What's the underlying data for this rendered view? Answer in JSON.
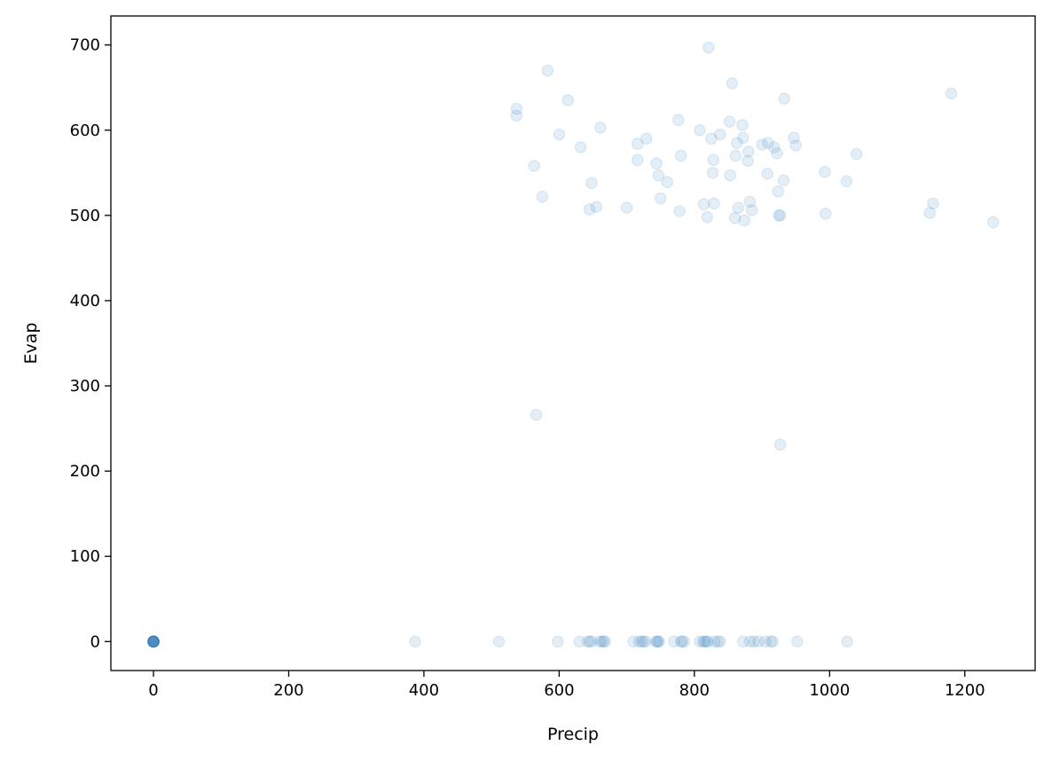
{
  "chart_data": {
    "type": "scatter",
    "title": "",
    "xlabel": "Precip",
    "ylabel": "Evap",
    "xlim": [
      -63,
      1304
    ],
    "ylim": [
      -34,
      734
    ],
    "xticks": [
      0,
      200,
      400,
      600,
      800,
      1000,
      1200
    ],
    "yticks": [
      0,
      100,
      200,
      300,
      400,
      500,
      600,
      700
    ],
    "grid": false,
    "marker_color": "#1f77b4",
    "marker_alpha": 0.12,
    "points": [
      [
        0,
        0
      ],
      [
        0,
        0
      ],
      [
        0,
        0
      ],
      [
        0,
        0
      ],
      [
        0,
        0
      ],
      [
        0,
        0
      ],
      [
        0,
        0
      ],
      [
        0,
        0
      ],
      [
        0,
        0
      ],
      [
        0,
        0
      ],
      [
        0,
        0
      ],
      [
        0,
        0
      ],
      [
        387,
        0
      ],
      [
        511,
        0
      ],
      [
        598,
        0
      ],
      [
        630,
        0
      ],
      [
        642,
        0
      ],
      [
        645,
        0
      ],
      [
        648,
        0
      ],
      [
        660,
        0
      ],
      [
        663,
        0
      ],
      [
        666,
        0
      ],
      [
        668,
        0
      ],
      [
        710,
        0
      ],
      [
        718,
        0
      ],
      [
        722,
        0
      ],
      [
        725,
        0
      ],
      [
        728,
        0
      ],
      [
        743,
        0
      ],
      [
        745,
        0
      ],
      [
        746,
        0
      ],
      [
        748,
        0
      ],
      [
        770,
        0
      ],
      [
        780,
        0
      ],
      [
        782,
        0
      ],
      [
        785,
        0
      ],
      [
        808,
        0
      ],
      [
        813,
        0
      ],
      [
        815,
        0
      ],
      [
        818,
        0
      ],
      [
        820,
        0
      ],
      [
        830,
        0
      ],
      [
        835,
        0
      ],
      [
        838,
        0
      ],
      [
        872,
        0
      ],
      [
        882,
        0
      ],
      [
        888,
        0
      ],
      [
        895,
        0
      ],
      [
        905,
        0
      ],
      [
        913,
        0
      ],
      [
        916,
        0
      ],
      [
        952,
        0
      ],
      [
        1026,
        0
      ],
      [
        537,
        625
      ],
      [
        537,
        617
      ],
      [
        563,
        558
      ],
      [
        575,
        522
      ],
      [
        583,
        670
      ],
      [
        600,
        595
      ],
      [
        613,
        635
      ],
      [
        632,
        580
      ],
      [
        645,
        507
      ],
      [
        648,
        538
      ],
      [
        655,
        510
      ],
      [
        661,
        603
      ],
      [
        700,
        509
      ],
      [
        716,
        584
      ],
      [
        716,
        565
      ],
      [
        729,
        590
      ],
      [
        744,
        561
      ],
      [
        747,
        547
      ],
      [
        750,
        520
      ],
      [
        760,
        539
      ],
      [
        776,
        612
      ],
      [
        778,
        505
      ],
      [
        780,
        570
      ],
      [
        808,
        600
      ],
      [
        814,
        513
      ],
      [
        819,
        498
      ],
      [
        821,
        697
      ],
      [
        825,
        590
      ],
      [
        827,
        550
      ],
      [
        828,
        565
      ],
      [
        829,
        514
      ],
      [
        838,
        595
      ],
      [
        852,
        610
      ],
      [
        853,
        547
      ],
      [
        856,
        655
      ],
      [
        860,
        497
      ],
      [
        861,
        570
      ],
      [
        863,
        585
      ],
      [
        865,
        509
      ],
      [
        871,
        606
      ],
      [
        872,
        591
      ],
      [
        874,
        494
      ],
      [
        879,
        564
      ],
      [
        880,
        575
      ],
      [
        882,
        516
      ],
      [
        885,
        506
      ],
      [
        900,
        583
      ],
      [
        908,
        549
      ],
      [
        909,
        585
      ],
      [
        918,
        580
      ],
      [
        922,
        573
      ],
      [
        924,
        528
      ],
      [
        925,
        500
      ],
      [
        927,
        500
      ],
      [
        932,
        541
      ],
      [
        933,
        637
      ],
      [
        947,
        591
      ],
      [
        950,
        582
      ],
      [
        993,
        551
      ],
      [
        994,
        502
      ],
      [
        1025,
        540
      ],
      [
        1040,
        572
      ],
      [
        1148,
        503
      ],
      [
        1153,
        514
      ],
      [
        1180,
        643
      ],
      [
        1242,
        492
      ],
      [
        566,
        266
      ],
      [
        927,
        231
      ]
    ]
  }
}
